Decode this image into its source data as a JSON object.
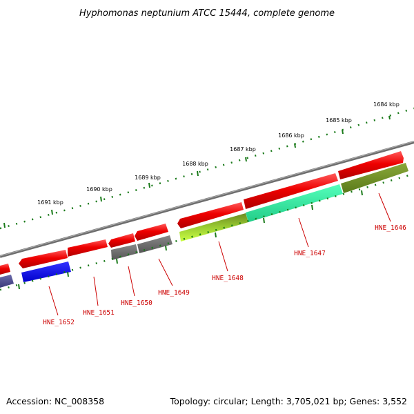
{
  "title": "Hyphomonas neptunium ATCC 15444, complete genome",
  "footer": {
    "accession": "Accession: NC_008358",
    "summary": "Topology: circular; Length: 3,705,021 bp; Genes: 3,552"
  },
  "kbp_labels": [
    "1684 kbp",
    "1685 kbp",
    "1686 kbp",
    "1687 kbp",
    "1688 kbp",
    "1689 kbp",
    "1690 kbp",
    "1691 kbp"
  ],
  "genes": [
    {
      "id": "HNE_1646",
      "label": "HNE_1646",
      "color": "#6b8e23"
    },
    {
      "id": "HNE_1647",
      "label": "HNE_1647",
      "color": "#33ee99"
    },
    {
      "id": "HNE_1648",
      "label": "HNE_1648",
      "color": "#7d9a2a"
    },
    {
      "id": "HNE_1649",
      "label": "HNE_1649",
      "color": "#666666"
    },
    {
      "id": "HNE_1650",
      "label": "HNE_1650",
      "color": "#666666"
    },
    {
      "id": "HNE_1651",
      "label": "HNE_1651",
      "color": "#ee0000"
    },
    {
      "id": "HNE_1652",
      "label": "HNE_1652",
      "color": "#0000ee"
    }
  ],
  "colors": {
    "backbone": "#808080",
    "tick": "#1a7a1a",
    "forward_gene": "#ee0000",
    "label": "#cc0000"
  }
}
